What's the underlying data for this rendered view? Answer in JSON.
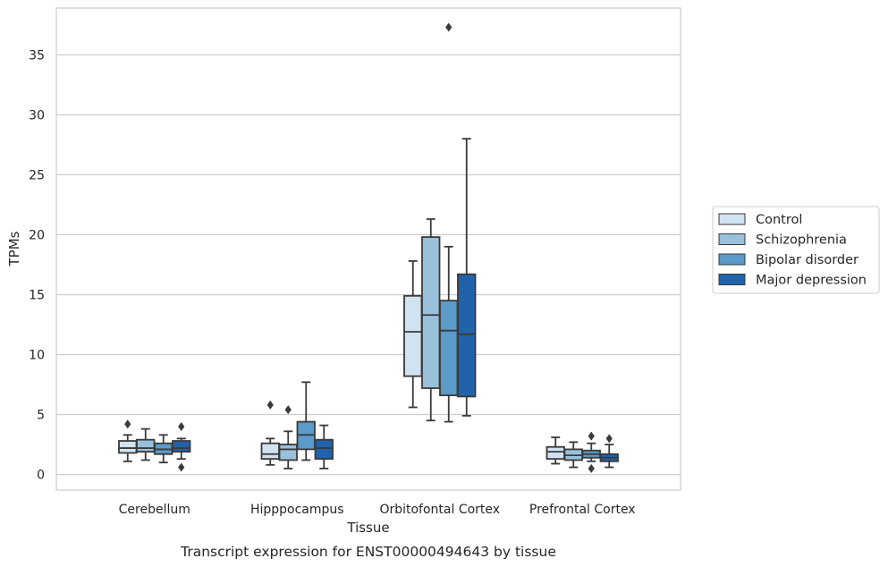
{
  "chart_data": {
    "type": "box",
    "title": "",
    "caption": "Transcript expression for ENST00000494643 by tissue",
    "xlabel": "Tissue",
    "ylabel": "TPMs",
    "ylim": [
      -1.3,
      38.9
    ],
    "yticks": [
      0,
      5,
      10,
      15,
      20,
      25,
      30,
      35
    ],
    "grid": true,
    "legend_position": "right",
    "categories": [
      "Cerebellum",
      "Hipppocampus",
      "Orbitofontal Cortex",
      "Prefrontal Cortex"
    ],
    "series": [
      {
        "name": "Control",
        "color": "#d1e2f1",
        "boxes": [
          {
            "whislo": 1.1,
            "q1": 1.8,
            "med": 2.2,
            "q3": 2.8,
            "whishi": 3.3,
            "fliers": [
              4.2
            ]
          },
          {
            "whislo": 0.8,
            "q1": 1.3,
            "med": 1.7,
            "q3": 2.6,
            "whishi": 3.0,
            "fliers": [
              5.8
            ]
          },
          {
            "whislo": 5.6,
            "q1": 8.2,
            "med": 11.9,
            "q3": 14.9,
            "whishi": 17.8,
            "fliers": []
          },
          {
            "whislo": 0.9,
            "q1": 1.3,
            "med": 1.9,
            "q3": 2.3,
            "whishi": 3.1,
            "fliers": []
          }
        ]
      },
      {
        "name": "Schizophrenia",
        "color": "#9ac1dc",
        "boxes": [
          {
            "whislo": 1.2,
            "q1": 1.9,
            "med": 2.2,
            "q3": 2.9,
            "whishi": 3.8,
            "fliers": []
          },
          {
            "whislo": 0.5,
            "q1": 1.2,
            "med": 2.1,
            "q3": 2.5,
            "whishi": 3.6,
            "fliers": [
              5.4
            ]
          },
          {
            "whislo": 4.5,
            "q1": 7.2,
            "med": 13.3,
            "q3": 19.8,
            "whishi": 21.3,
            "fliers": []
          },
          {
            "whislo": 0.6,
            "q1": 1.2,
            "med": 1.6,
            "q3": 2.1,
            "whishi": 2.7,
            "fliers": []
          }
        ]
      },
      {
        "name": "Bipolar disorder",
        "color": "#5a9bc9",
        "boxes": [
          {
            "whislo": 1.0,
            "q1": 1.7,
            "med": 2.1,
            "q3": 2.6,
            "whishi": 3.3,
            "fliers": []
          },
          {
            "whislo": 1.2,
            "q1": 2.1,
            "med": 3.3,
            "q3": 4.4,
            "whishi": 7.7,
            "fliers": []
          },
          {
            "whislo": 4.4,
            "q1": 6.6,
            "med": 12.0,
            "q3": 14.5,
            "whishi": 19.0,
            "fliers": [
              37.3
            ]
          },
          {
            "whislo": 1.1,
            "q1": 1.4,
            "med": 1.7,
            "q3": 2.0,
            "whishi": 2.6,
            "fliers": [
              3.2,
              0.5
            ]
          }
        ]
      },
      {
        "name": "Major depression",
        "color": "#2163aa",
        "boxes": [
          {
            "whislo": 1.3,
            "q1": 1.9,
            "med": 2.2,
            "q3": 2.8,
            "whishi": 3.0,
            "fliers": [
              4.0,
              0.6
            ]
          },
          {
            "whislo": 0.5,
            "q1": 1.3,
            "med": 2.2,
            "q3": 2.9,
            "whishi": 4.1,
            "fliers": []
          },
          {
            "whislo": 4.9,
            "q1": 6.5,
            "med": 11.7,
            "q3": 16.7,
            "whishi": 28.0,
            "fliers": []
          },
          {
            "whislo": 0.6,
            "q1": 1.1,
            "med": 1.4,
            "q3": 1.7,
            "whishi": 2.5,
            "fliers": [
              3.0
            ]
          }
        ]
      }
    ]
  }
}
